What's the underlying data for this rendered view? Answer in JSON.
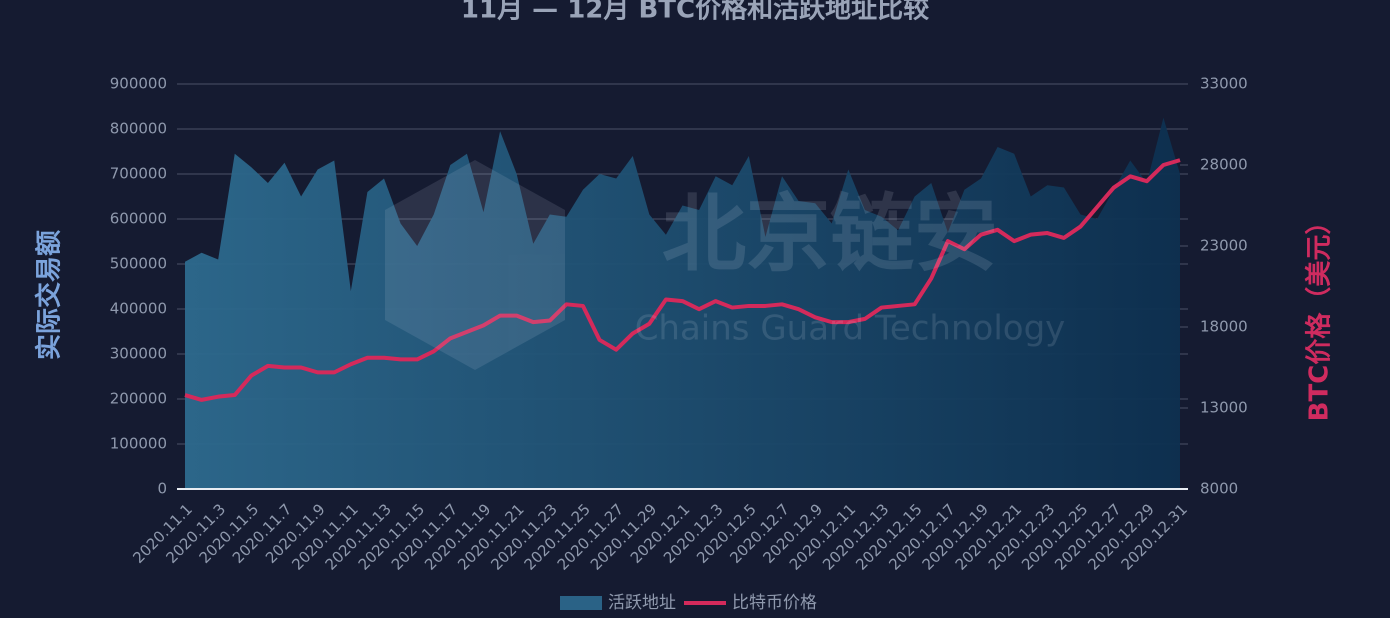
{
  "chart_data": {
    "type": "area-line",
    "title": "11月 — 12月 BTC价格和活跃地址比较",
    "watermark": "北京链安",
    "watermark_subtitle": "Chains Guard Technology",
    "y_label": "实际交易额",
    "y2_label": "BTC价格（美元）",
    "categories": [
      "2020.11.1",
      null,
      "2020.11.3",
      null,
      "2020.11.5",
      null,
      "2020.11.7",
      null,
      "2020.11.9",
      null,
      "2020.11.11",
      null,
      "2020.11.13",
      null,
      "2020.11.15",
      null,
      "2020.11.17",
      null,
      "2020.11.19",
      null,
      "2020.11.21",
      null,
      "2020.11.23",
      null,
      "2020.11.25",
      null,
      "2020.11.27",
      null,
      "2020.11.29",
      null,
      "2020.12.1",
      null,
      "2020.12.3",
      null,
      "2020.12.5",
      null,
      "2020.12.7",
      null,
      "2020.12.9",
      null,
      "2020.12.11",
      null,
      "2020.12.13",
      null,
      "2020.12.15",
      null,
      "2020.12.17",
      null,
      "2020.12.19",
      null,
      "2020.12.21",
      null,
      "2020.12.23",
      null,
      "2020.12.25",
      null,
      "2020.12.27",
      null,
      "2020.12.29",
      null,
      "2020.12.31"
    ],
    "series": [
      {
        "name": "活跃地址",
        "color": "#2a6286",
        "type": "area",
        "values": [
          505000,
          525000,
          510000,
          745000,
          715000,
          680000,
          725000,
          650000,
          710000,
          730000,
          440000,
          660000,
          690000,
          590000,
          540000,
          610000,
          720000,
          745000,
          615000,
          795000,
          700000,
          545000,
          610000,
          605000,
          665000,
          700000,
          690000,
          740000,
          610000,
          565000,
          630000,
          620000,
          695000,
          675000,
          740000,
          560000,
          695000,
          640000,
          635000,
          590000,
          710000,
          620000,
          605000,
          575000,
          650000,
          680000,
          570000,
          665000,
          690000,
          760000,
          745000,
          650000,
          675000,
          670000,
          610000,
          600000,
          665000,
          730000,
          680000,
          825000,
          700000
        ]
      },
      {
        "name": "比特币价格",
        "color": "#d42a5b",
        "type": "line",
        "axis": "y2",
        "values": [
          13800,
          13500,
          13700,
          13800,
          15000,
          15600,
          15500,
          15500,
          15200,
          15200,
          15700,
          16100,
          16100,
          16000,
          16000,
          16500,
          17300,
          17700,
          18100,
          18700,
          18700,
          18300,
          18400,
          19400,
          19300,
          17200,
          16600,
          17600,
          18200,
          19700,
          19600,
          19100,
          19600,
          19200,
          19300,
          19300,
          19400,
          19100,
          18600,
          18300,
          18300,
          18500,
          19200,
          19300,
          19400,
          21000,
          23300,
          22800,
          23700,
          24000,
          23300,
          23700,
          23800,
          23500,
          24200,
          25400,
          26600,
          27300,
          27000,
          28000,
          28300
        ]
      }
    ],
    "ylim": [
      0,
      900000
    ],
    "yticks": [
      0,
      100000,
      200000,
      300000,
      400000,
      500000,
      600000,
      700000,
      800000,
      900000
    ],
    "y2lim": [
      8000,
      33000
    ],
    "y2ticks": [
      8000,
      13000,
      18000,
      23000,
      28000,
      33000
    ],
    "grid": true,
    "legend": "bottom"
  }
}
